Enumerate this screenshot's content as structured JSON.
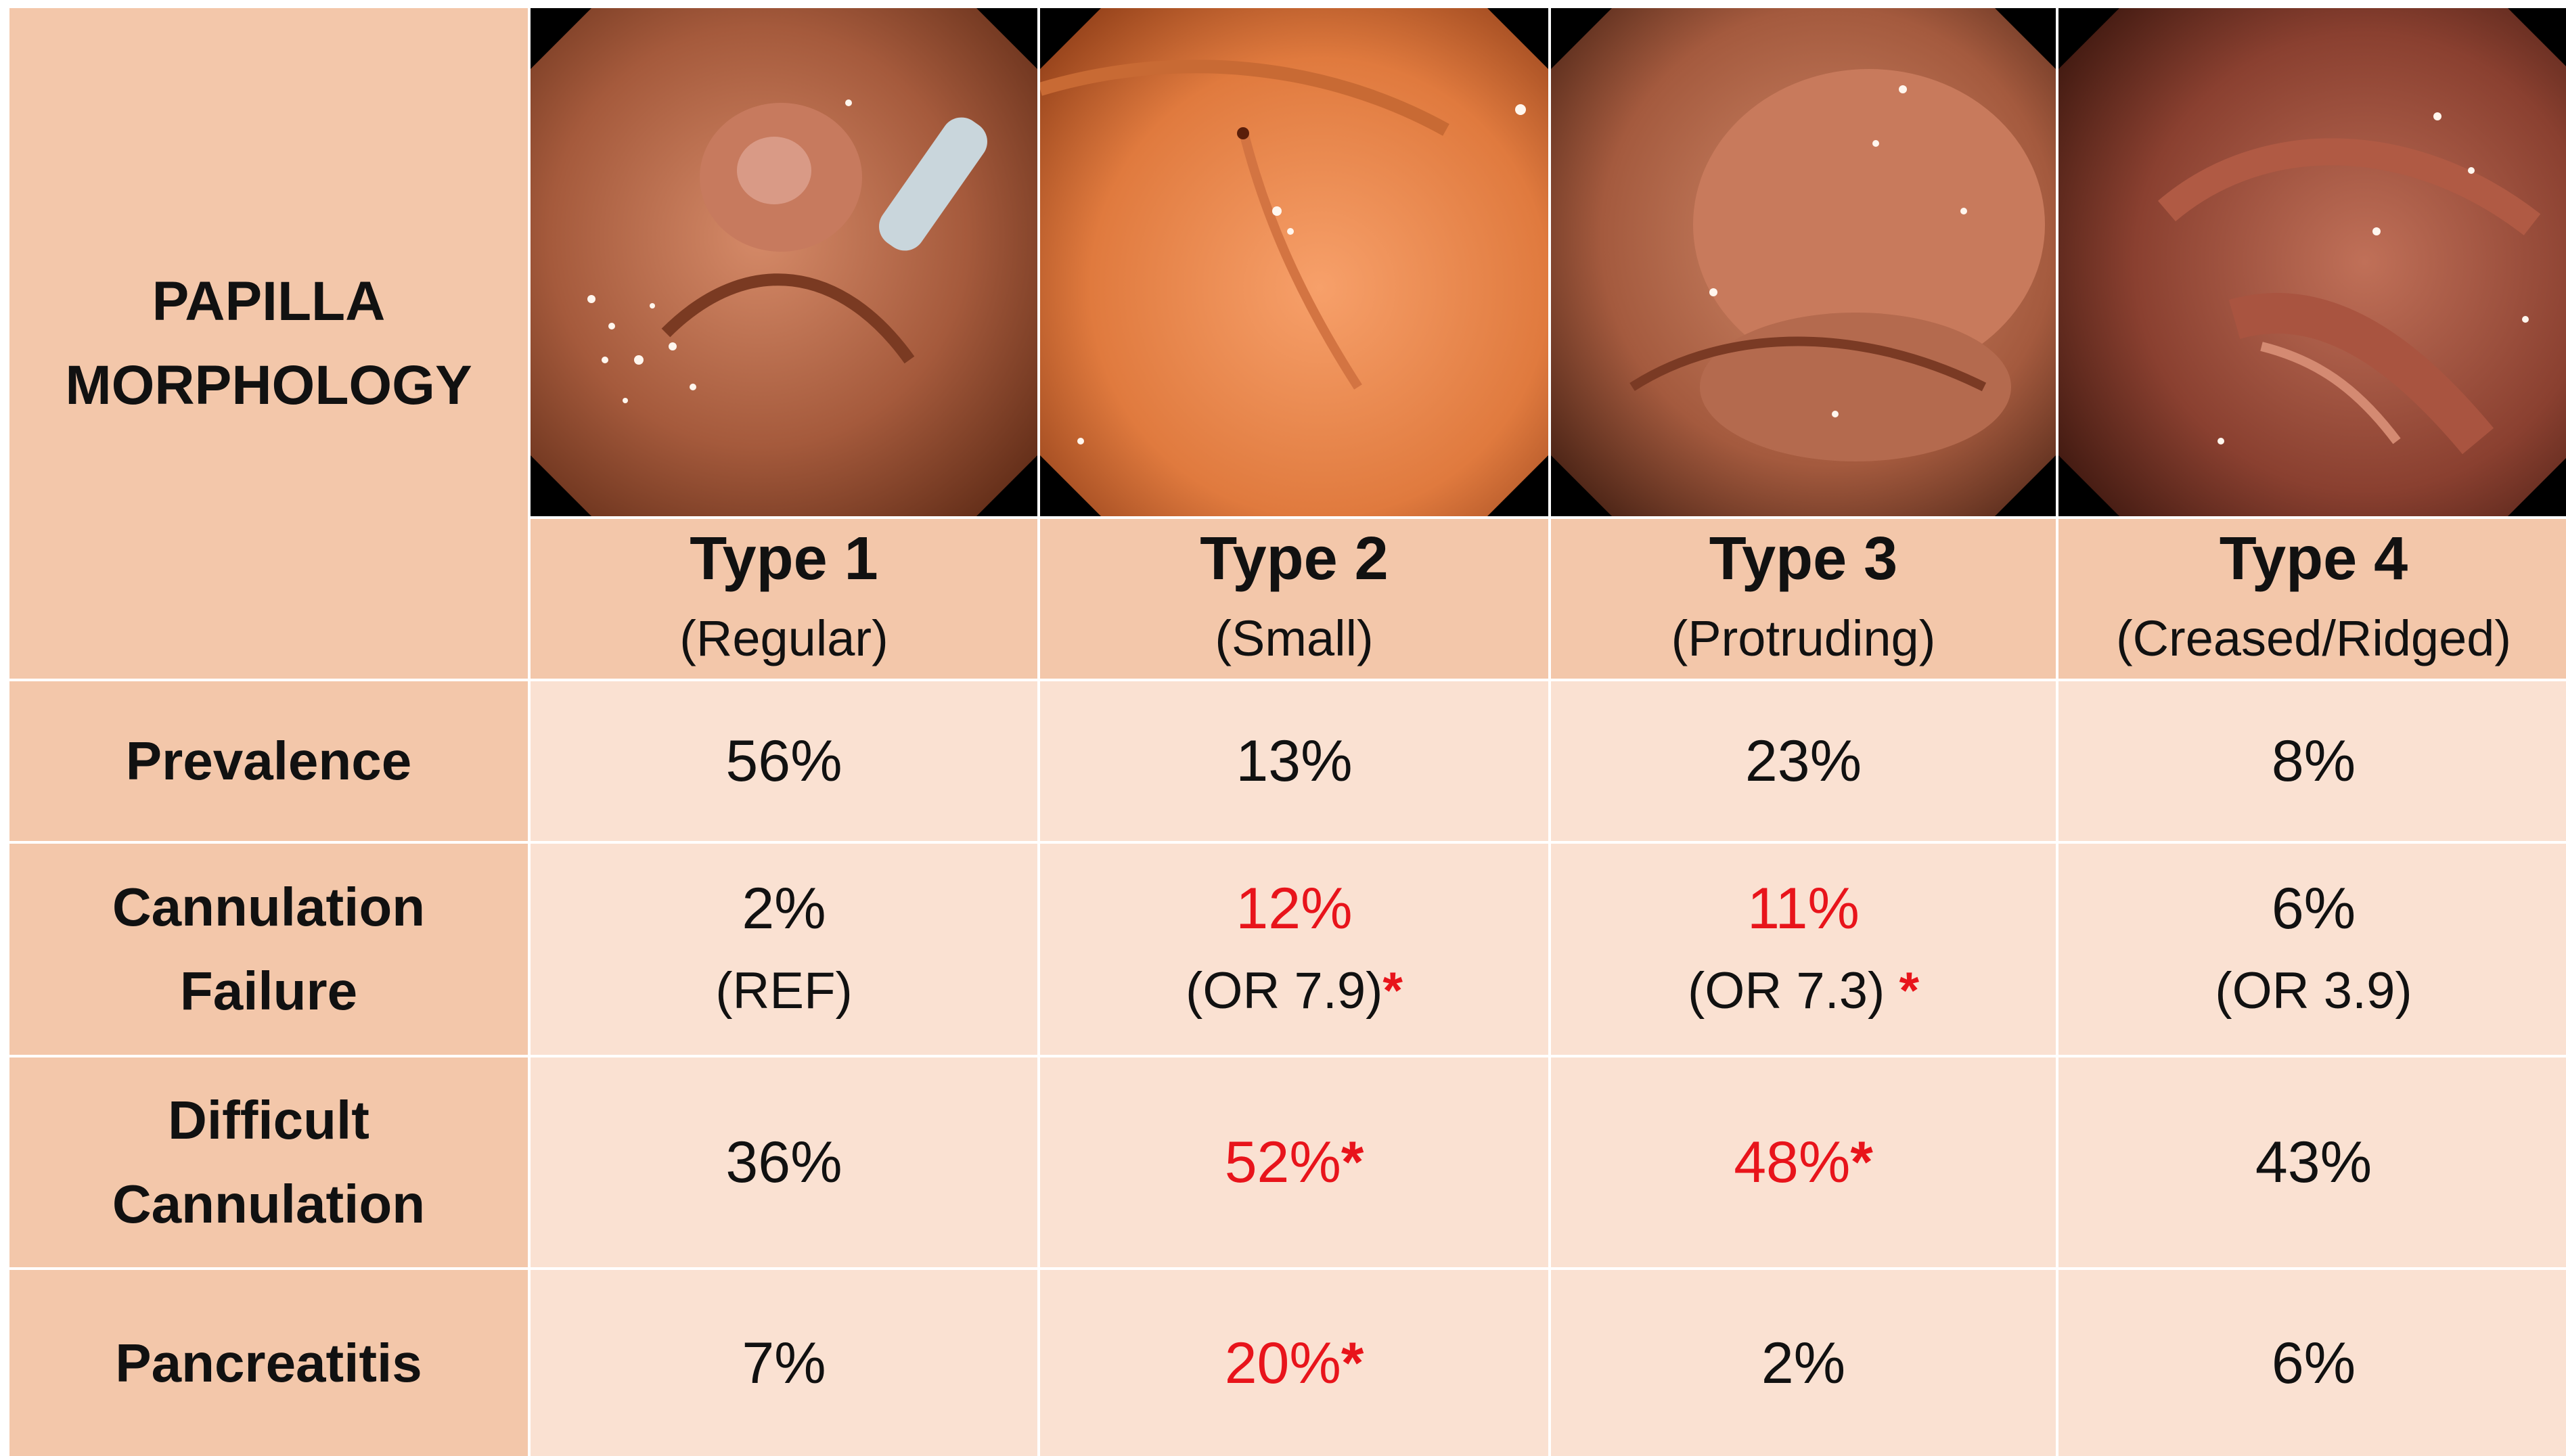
{
  "corner": {
    "line1": "PAPILLA",
    "line2": "MORPHOLOGY"
  },
  "types": [
    {
      "title": "Type 1",
      "subtitle": "(Regular)"
    },
    {
      "title": "Type 2",
      "subtitle": "(Small)"
    },
    {
      "title": "Type 3",
      "subtitle": "(Protruding)"
    },
    {
      "title": "Type 4",
      "subtitle": "(Creased/Ridged)"
    }
  ],
  "rows": {
    "prevalence": {
      "label": "Prevalence",
      "values": [
        "56%",
        "13%",
        "23%",
        "8%"
      ]
    },
    "cannulation_failure": {
      "label_line1": "Cannulation",
      "label_line2": "Failure",
      "values": [
        {
          "main": "2%",
          "sub": "(REF)"
        },
        {
          "main": "12%",
          "sub": "(OR 7.9)",
          "star": "*"
        },
        {
          "main": "11%",
          "sub": "(OR 7.3) ",
          "star": "*"
        },
        {
          "main": "6%",
          "sub": "(OR 3.9)"
        }
      ]
    },
    "difficult_cannulation": {
      "label_line1": "Difficult",
      "label_line2": "Cannulation",
      "values": [
        {
          "main": "36%"
        },
        {
          "main": "52%",
          "star": "*"
        },
        {
          "main": "48%",
          "star": "*"
        },
        {
          "main": "43%"
        }
      ]
    },
    "pancreatitis": {
      "label": "Pancreatitis",
      "values": [
        {
          "main": "7%"
        },
        {
          "main": "20%",
          "star": "*"
        },
        {
          "main": "2%"
        },
        {
          "main": "6%"
        }
      ]
    }
  },
  "colors": {
    "header_bg": "#f3c7aa",
    "cell_bg": "#fae1d2",
    "significant": "#e8141b"
  }
}
